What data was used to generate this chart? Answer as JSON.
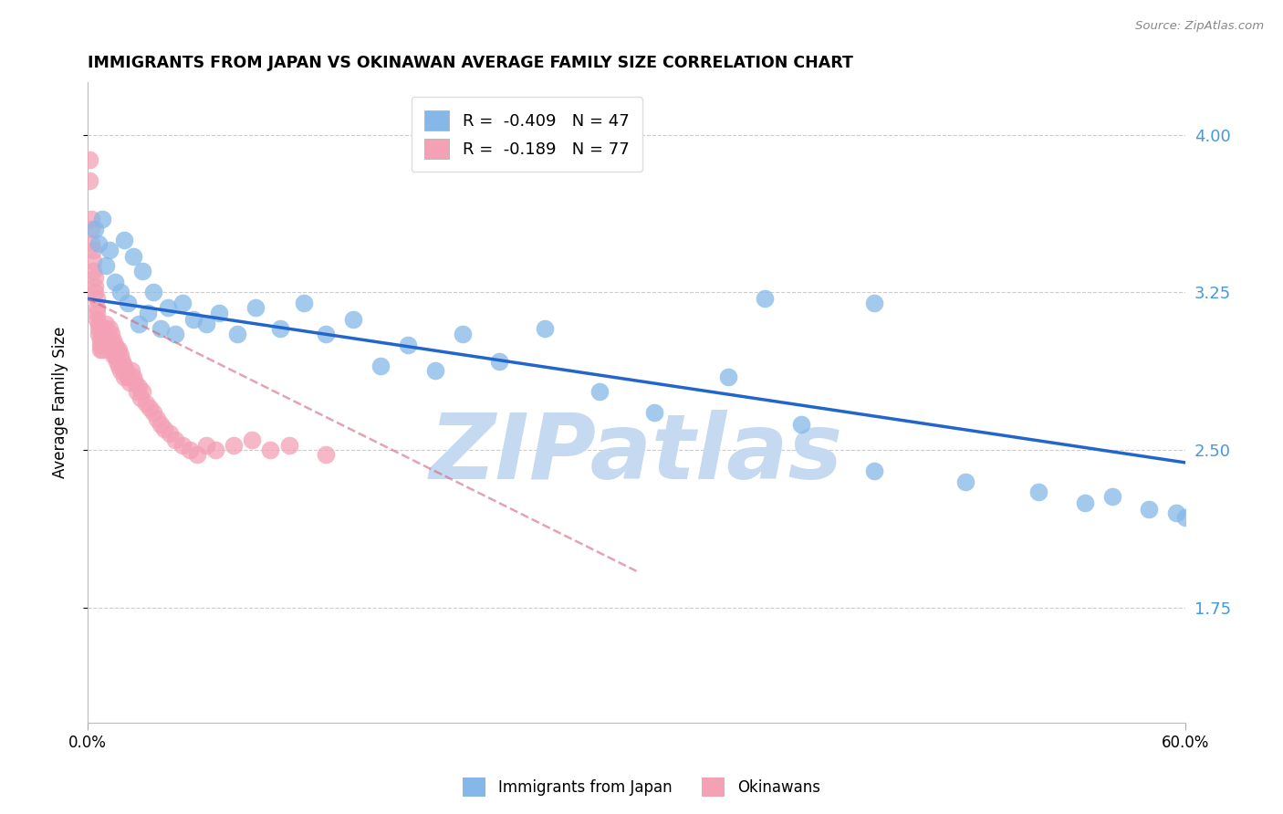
{
  "title": "IMMIGRANTS FROM JAPAN VS OKINAWAN AVERAGE FAMILY SIZE CORRELATION CHART",
  "source": "Source: ZipAtlas.com",
  "ylabel": "Average Family Size",
  "yticks": [
    1.75,
    2.5,
    3.25,
    4.0
  ],
  "xlim": [
    0.0,
    0.6
  ],
  "ylim": [
    1.2,
    4.25
  ],
  "blue_R": -0.409,
  "blue_N": 47,
  "pink_R": -0.189,
  "pink_N": 77,
  "blue_color": "#85b8e8",
  "pink_color": "#f4a0b5",
  "blue_line_color": "#2266cc",
  "pink_line_color": "#d06880",
  "watermark": "ZIPatlas",
  "watermark_color": "#c5d9f0",
  "background_color": "#ffffff",
  "grid_color": "#cccccc",
  "tick_color": "#4499dd",
  "blue_trend_x0": 0.0,
  "blue_trend_y0": 3.22,
  "blue_trend_x1": 0.6,
  "blue_trend_y1": 2.44,
  "pink_trend_x0": 0.0,
  "pink_trend_y0": 3.22,
  "pink_trend_x1": 0.155,
  "pink_trend_y1": 2.55,
  "blue_scatter_x": [
    0.004,
    0.006,
    0.008,
    0.01,
    0.012,
    0.015,
    0.018,
    0.02,
    0.022,
    0.025,
    0.028,
    0.03,
    0.033,
    0.036,
    0.04,
    0.044,
    0.048,
    0.052,
    0.058,
    0.065,
    0.072,
    0.082,
    0.092,
    0.105,
    0.118,
    0.13,
    0.145,
    0.16,
    0.175,
    0.19,
    0.205,
    0.225,
    0.25,
    0.28,
    0.31,
    0.35,
    0.39,
    0.43,
    0.48,
    0.52,
    0.545,
    0.56,
    0.58,
    0.595,
    0.6,
    0.43,
    0.37
  ],
  "blue_scatter_y": [
    3.55,
    3.48,
    3.6,
    3.38,
    3.45,
    3.3,
    3.25,
    3.5,
    3.2,
    3.42,
    3.1,
    3.35,
    3.15,
    3.25,
    3.08,
    3.18,
    3.05,
    3.2,
    3.12,
    3.1,
    3.15,
    3.05,
    3.18,
    3.08,
    3.2,
    3.05,
    3.12,
    2.9,
    3.0,
    2.88,
    3.05,
    2.92,
    3.08,
    2.78,
    2.68,
    2.85,
    2.62,
    2.4,
    2.35,
    2.3,
    2.25,
    2.28,
    2.22,
    2.2,
    2.18,
    3.2,
    3.22
  ],
  "pink_scatter_x": [
    0.001,
    0.001,
    0.002,
    0.002,
    0.002,
    0.003,
    0.003,
    0.003,
    0.004,
    0.004,
    0.004,
    0.005,
    0.005,
    0.005,
    0.005,
    0.006,
    0.006,
    0.006,
    0.007,
    0.007,
    0.007,
    0.008,
    0.008,
    0.008,
    0.009,
    0.009,
    0.009,
    0.01,
    0.01,
    0.01,
    0.011,
    0.011,
    0.012,
    0.012,
    0.013,
    0.013,
    0.014,
    0.014,
    0.015,
    0.015,
    0.016,
    0.016,
    0.017,
    0.017,
    0.018,
    0.018,
    0.019,
    0.02,
    0.02,
    0.021,
    0.022,
    0.023,
    0.024,
    0.025,
    0.026,
    0.027,
    0.028,
    0.029,
    0.03,
    0.032,
    0.034,
    0.036,
    0.038,
    0.04,
    0.042,
    0.045,
    0.048,
    0.052,
    0.056,
    0.06,
    0.065,
    0.07,
    0.08,
    0.09,
    0.1,
    0.11,
    0.13
  ],
  "pink_scatter_y": [
    3.88,
    3.78,
    3.6,
    3.55,
    3.48,
    3.45,
    3.4,
    3.35,
    3.32,
    3.28,
    3.25,
    3.22,
    3.18,
    3.15,
    3.12,
    3.1,
    3.08,
    3.05,
    3.02,
    3.0,
    2.98,
    3.05,
    3.02,
    2.98,
    3.08,
    3.05,
    3.0,
    3.1,
    3.05,
    3.0,
    3.05,
    3.0,
    3.08,
    3.02,
    3.05,
    2.98,
    3.02,
    2.95,
    3.0,
    2.95,
    2.98,
    2.92,
    2.98,
    2.9,
    2.95,
    2.88,
    2.92,
    2.9,
    2.85,
    2.88,
    2.85,
    2.82,
    2.88,
    2.85,
    2.82,
    2.78,
    2.8,
    2.75,
    2.78,
    2.72,
    2.7,
    2.68,
    2.65,
    2.62,
    2.6,
    2.58,
    2.55,
    2.52,
    2.5,
    2.48,
    2.52,
    2.5,
    2.52,
    2.55,
    2.5,
    2.52,
    2.48
  ]
}
